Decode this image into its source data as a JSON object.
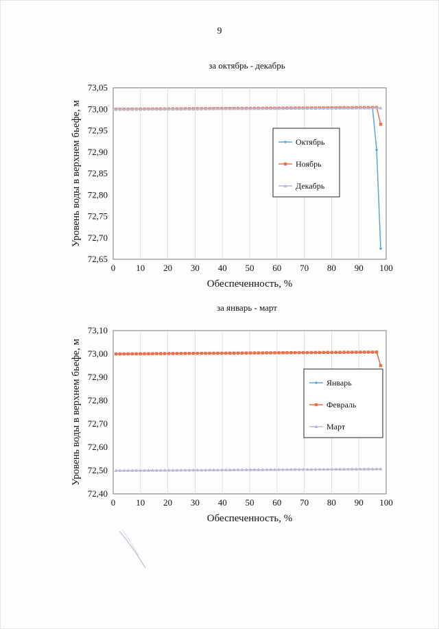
{
  "page": {
    "number": "9"
  },
  "colors": {
    "blue": "#5aa5dd",
    "orange": "#e8704a",
    "lilac": "#b9b6d3"
  },
  "chart_data": [
    {
      "type": "line",
      "title": "за октябрь - декабрь",
      "xlabel": "Обеспеченность, %",
      "ylabel": "Уровень воды в верхнем бьефе, м",
      "xlim": [
        0,
        100
      ],
      "ylim": [
        72.65,
        73.05
      ],
      "xticks": [
        "0",
        "10",
        "20",
        "30",
        "40",
        "50",
        "60",
        "70",
        "80",
        "90",
        "100"
      ],
      "yticks": [
        "72,65",
        "72,70",
        "72,75",
        "72,80",
        "72,85",
        "72,90",
        "72,95",
        "73,00",
        "73,05"
      ],
      "grid": "vertical",
      "legend_position": "right",
      "series": [
        {
          "name": "Октябрь",
          "color": "#5aa5dd",
          "marker": "diamond",
          "flat": {
            "from": 1,
            "to": 95,
            "y0": 73.0,
            "y1": 73.003
          },
          "tail": [
            [
              96.5,
              72.905
            ],
            [
              98,
              72.675
            ]
          ]
        },
        {
          "name": "Ноябрь",
          "color": "#e8704a",
          "marker": "square",
          "flat": {
            "from": 1,
            "to": 96.5,
            "y0": 73.0,
            "y1": 73.004
          },
          "tail": [
            [
              98,
              72.965
            ]
          ]
        },
        {
          "name": "Декабрь",
          "color": "#b9b6d3",
          "marker": "triangle",
          "flat": {
            "from": 1,
            "to": 98,
            "y0": 73.0,
            "y1": 73.003
          },
          "tail": []
        }
      ]
    },
    {
      "type": "line",
      "title": "за январь - март",
      "xlabel": "Обеспеченность, %",
      "ylabel": "Уровень воды в верхнем бьефе, м",
      "xlim": [
        0,
        100
      ],
      "ylim": [
        72.4,
        73.1
      ],
      "xticks": [
        "0",
        "10",
        "20",
        "30",
        "40",
        "50",
        "60",
        "70",
        "80",
        "90",
        "100"
      ],
      "yticks": [
        "72,40",
        "72,50",
        "72,60",
        "72,70",
        "72,80",
        "72,90",
        "73,00",
        "73,10"
      ],
      "grid": "vertical",
      "legend_position": "right",
      "series": [
        {
          "name": "Январь",
          "color": "#5aa5dd",
          "marker": "diamond",
          "flat": {
            "from": 1,
            "to": 96.5,
            "y0": 73.0,
            "y1": 73.007
          },
          "tail": [
            [
              98,
              72.95
            ]
          ]
        },
        {
          "name": "Февраль",
          "color": "#e8704a",
          "marker": "square",
          "flat": {
            "from": 1,
            "to": 96.5,
            "y0": 73.0,
            "y1": 73.008
          },
          "tail": [
            [
              98,
              72.95
            ]
          ]
        },
        {
          "name": "Март",
          "color": "#b9b6d3",
          "marker": "triangle",
          "flat": {
            "from": 1,
            "to": 98,
            "y0": 72.5,
            "y1": 72.507
          },
          "tail": []
        }
      ]
    }
  ]
}
